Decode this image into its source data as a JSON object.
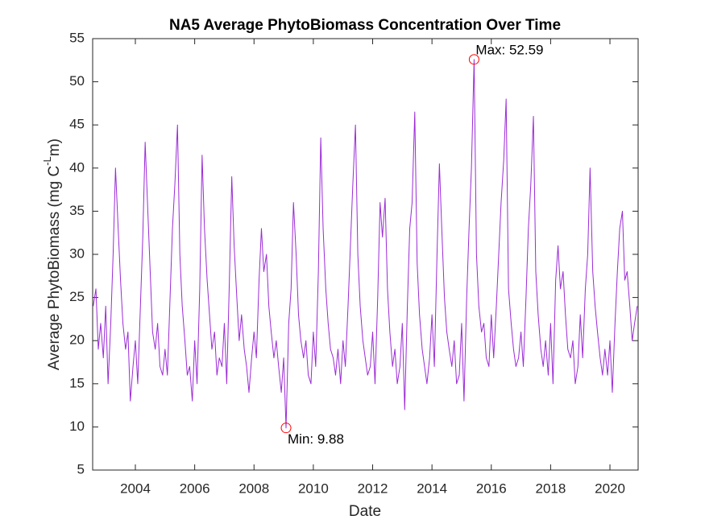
{
  "chart_data": {
    "type": "line",
    "title": "NA5 Average PhytoBiomass Concentration Over Time",
    "xlabel": "Date",
    "ylabel": [
      "Average PhytoBiomass (mg C",
      "-L",
      "m)"
    ],
    "xlim": [
      2002.56,
      2020.95
    ],
    "xticks": [
      2004,
      2006,
      2008,
      2010,
      2012,
      2014,
      2016,
      2018,
      2020
    ],
    "ylim": [
      5,
      55
    ],
    "yticks": [
      5,
      10,
      15,
      20,
      25,
      30,
      35,
      40,
      45,
      50,
      55
    ],
    "grid": false,
    "series": [
      {
        "color": "#9b2bd6",
        "x": [
          2002.58,
          2002.67,
          2002.75,
          2002.83,
          2002.92,
          2003.0,
          2003.08,
          2003.17,
          2003.25,
          2003.33,
          2003.42,
          2003.5,
          2003.58,
          2003.67,
          2003.75,
          2003.83,
          2003.92,
          2004.0,
          2004.08,
          2004.17,
          2004.25,
          2004.33,
          2004.42,
          2004.5,
          2004.58,
          2004.67,
          2004.75,
          2004.83,
          2004.92,
          2005.0,
          2005.08,
          2005.17,
          2005.25,
          2005.33,
          2005.42,
          2005.5,
          2005.58,
          2005.67,
          2005.75,
          2005.83,
          2005.92,
          2006.0,
          2006.08,
          2006.17,
          2006.25,
          2006.33,
          2006.42,
          2006.5,
          2006.58,
          2006.67,
          2006.75,
          2006.83,
          2006.92,
          2007.0,
          2007.08,
          2007.17,
          2007.25,
          2007.33,
          2007.42,
          2007.5,
          2007.58,
          2007.67,
          2007.75,
          2007.83,
          2007.92,
          2008.0,
          2008.08,
          2008.17,
          2008.25,
          2008.33,
          2008.42,
          2008.5,
          2008.58,
          2008.67,
          2008.75,
          2008.83,
          2008.92,
          2009.0,
          2009.08,
          2009.17,
          2009.25,
          2009.33,
          2009.42,
          2009.5,
          2009.58,
          2009.67,
          2009.75,
          2009.83,
          2009.92,
          2010.0,
          2010.08,
          2010.17,
          2010.25,
          2010.33,
          2010.42,
          2010.5,
          2010.58,
          2010.67,
          2010.75,
          2010.83,
          2010.92,
          2011.0,
          2011.08,
          2011.17,
          2011.25,
          2011.33,
          2011.42,
          2011.5,
          2011.58,
          2011.67,
          2011.75,
          2011.83,
          2011.92,
          2012.0,
          2012.08,
          2012.17,
          2012.25,
          2012.33,
          2012.42,
          2012.5,
          2012.58,
          2012.67,
          2012.75,
          2012.83,
          2012.92,
          2013.0,
          2013.08,
          2013.17,
          2013.25,
          2013.33,
          2013.42,
          2013.5,
          2013.58,
          2013.67,
          2013.75,
          2013.83,
          2013.92,
          2014.0,
          2014.08,
          2014.17,
          2014.25,
          2014.33,
          2014.42,
          2014.5,
          2014.58,
          2014.67,
          2014.75,
          2014.83,
          2014.92,
          2015.0,
          2015.08,
          2015.17,
          2015.25,
          2015.33,
          2015.42,
          2015.5,
          2015.58,
          2015.67,
          2015.75,
          2015.83,
          2015.92,
          2016.0,
          2016.08,
          2016.17,
          2016.25,
          2016.33,
          2016.42,
          2016.5,
          2016.58,
          2016.67,
          2016.75,
          2016.83,
          2016.92,
          2017.0,
          2017.08,
          2017.17,
          2017.25,
          2017.33,
          2017.42,
          2017.5,
          2017.58,
          2017.67,
          2017.75,
          2017.83,
          2017.92,
          2018.0,
          2018.08,
          2018.17,
          2018.25,
          2018.33,
          2018.42,
          2018.5,
          2018.58,
          2018.67,
          2018.75,
          2018.83,
          2018.92,
          2019.0,
          2019.08,
          2019.17,
          2019.25,
          2019.33,
          2019.42,
          2019.5,
          2019.58,
          2019.67,
          2019.75,
          2019.83,
          2019.92,
          2020.0,
          2020.08,
          2020.17,
          2020.25,
          2020.33,
          2020.42,
          2020.5,
          2020.58,
          2020.67,
          2020.75,
          2020.83,
          2020.92
        ],
        "values": [
          24,
          26,
          19,
          22,
          18,
          24,
          15,
          22,
          30,
          40,
          33,
          27,
          22,
          19,
          21,
          13,
          17,
          20,
          15,
          24,
          32,
          43,
          35,
          28,
          21,
          19,
          22,
          17,
          16,
          19,
          16,
          25,
          33,
          38,
          45,
          30,
          24,
          20,
          16,
          17,
          13,
          20,
          15,
          26,
          41.5,
          33,
          27,
          23,
          19,
          21,
          16,
          18,
          17,
          22,
          15,
          27,
          39,
          31,
          25,
          20,
          23,
          19,
          17,
          14,
          18,
          21,
          18,
          27,
          33,
          28,
          30,
          24,
          21,
          18,
          20,
          17,
          14,
          18,
          9.88,
          22,
          26,
          36,
          30,
          23,
          20,
          18,
          20,
          16,
          15,
          21,
          17,
          28,
          43.5,
          33,
          26,
          22,
          19,
          18,
          16,
          19,
          15,
          20,
          17,
          24,
          31,
          38,
          45,
          30,
          24,
          20,
          18,
          16,
          17,
          21,
          15,
          25,
          36,
          32,
          36.5,
          26,
          21,
          17,
          19,
          15,
          17,
          22,
          12,
          24,
          33,
          36,
          46.5,
          29,
          23,
          19,
          17,
          15,
          18,
          23,
          17,
          30,
          40.5,
          33,
          25,
          21,
          19,
          17,
          20,
          15,
          16,
          22,
          13,
          25,
          33,
          40,
          52.59,
          30,
          24,
          21,
          22,
          18,
          17,
          23,
          18,
          24,
          30,
          36,
          41,
          48,
          26,
          22,
          19,
          17,
          18,
          21,
          17,
          25,
          33,
          38,
          46,
          28,
          23,
          19,
          17,
          20,
          16,
          22,
          15,
          27,
          31,
          26,
          28,
          23,
          19,
          18,
          20,
          15,
          17,
          23,
          18,
          26,
          30,
          40,
          28,
          24,
          21,
          18,
          16,
          19,
          16,
          20,
          14,
          22,
          28,
          33,
          35,
          27,
          28,
          24,
          20,
          22,
          24
        ]
      }
    ],
    "annotations": [
      {
        "text": "Max: 52.59",
        "x": 2015.42,
        "y": 52.59,
        "color": "#ff0000"
      },
      {
        "text": "Min: 9.88",
        "x": 2009.08,
        "y": 9.88,
        "color": "#ff0000"
      }
    ]
  }
}
